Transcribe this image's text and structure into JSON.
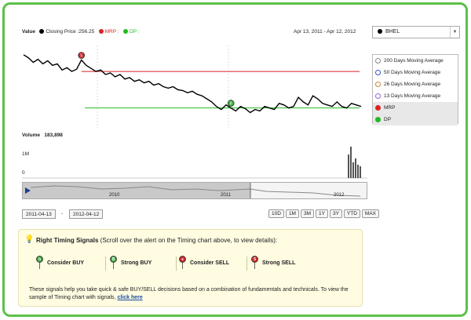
{
  "header": {
    "value_label": "Value",
    "closing_label": "Closing Price :256.25",
    "mrp_label": "MRP :",
    "dp_label": "DP :",
    "date_range": "Apr 13, 2011 - Apr 12, 2012"
  },
  "stock_select": {
    "value": "BHEL"
  },
  "legend": {
    "items": [
      {
        "label": "200 Days Moving Average",
        "color": "#888888"
      },
      {
        "label": "50 Days Moving Average",
        "color": "#3355cc"
      },
      {
        "label": "26 Days Moving Average",
        "color": "#cc8833"
      },
      {
        "label": "13 Days Moving Average",
        "color": "#9966cc"
      },
      {
        "label": "MRP",
        "color": "#dd2222"
      },
      {
        "label": "DP",
        "color": "#22bb22"
      }
    ]
  },
  "volume": {
    "label": "Volume",
    "value": "183,898",
    "ticks": [
      "1M",
      "0"
    ]
  },
  "navigator": {
    "years": [
      "2010",
      "2011",
      "2012"
    ]
  },
  "dates": {
    "from": "2011-04-13",
    "separator": "-",
    "to": "2012-04-12"
  },
  "ranges": [
    "10D",
    "1M",
    "3M",
    "1Y",
    "3Y",
    "YTD",
    "MAX"
  ],
  "signals": {
    "title": "Right Timing Signals",
    "subtitle": "(Scroll over the alert on the Timing chart above, to view details):",
    "items": [
      {
        "label": "Consider BUY",
        "pin": "b",
        "color": "#33aa33"
      },
      {
        "label": "Strong BUY",
        "pin": "B",
        "color": "#33aa33"
      },
      {
        "label": "Consider SELL",
        "pin": "s",
        "color": "#cc2222"
      },
      {
        "label": "Strong SELL",
        "pin": "S",
        "color": "#cc2222"
      }
    ],
    "description": "These signals help you take quick & safe BUY/SELL decisions based on a combination of fundamentals and technicals. To view the sample of Timing chart with signals,",
    "link": "click here"
  },
  "chart_data": {
    "type": "line",
    "series": [
      {
        "values": [
          92,
          88,
          82,
          86,
          80,
          84,
          78,
          80,
          72,
          75,
          70,
          73,
          85,
          78,
          74,
          70,
          72,
          66,
          68,
          63,
          66,
          60,
          62,
          57,
          59,
          55,
          57,
          52,
          54,
          50,
          48,
          50,
          46,
          45,
          42,
          44,
          40,
          38,
          34,
          30,
          24,
          20,
          26,
          22,
          18,
          24,
          21,
          16,
          20,
          18,
          24,
          22,
          20,
          28,
          26,
          22,
          24,
          36,
          30,
          26,
          38,
          34,
          28,
          26,
          24,
          30,
          24,
          22,
          28,
          26,
          24
        ]
      }
    ],
    "mrp_level": 70,
    "dp_level": 22
  }
}
